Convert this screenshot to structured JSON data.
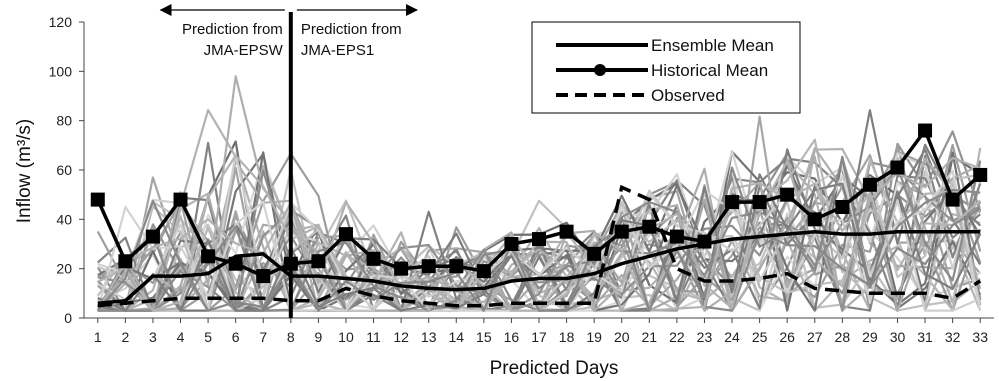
{
  "chart_data": {
    "type": "line",
    "xlabel": "Predicted Days",
    "ylabel": "Inflow (m³/s)",
    "xlim": [
      1,
      33
    ],
    "ylim": [
      0,
      120
    ],
    "yticks": [
      0,
      20,
      40,
      60,
      80,
      100,
      120
    ],
    "x": [
      1,
      2,
      3,
      4,
      5,
      6,
      7,
      8,
      9,
      10,
      11,
      12,
      13,
      14,
      15,
      16,
      17,
      18,
      19,
      20,
      21,
      22,
      23,
      24,
      25,
      26,
      27,
      28,
      29,
      30,
      31,
      32,
      33
    ],
    "grid": false,
    "legend": "top-right",
    "divider_day": 8,
    "annotations": [
      {
        "lines": [
          "Prediction from",
          "JMA-EPSW"
        ],
        "side": "left"
      },
      {
        "lines": [
          "Prediction from",
          "JMA-EPS1"
        ],
        "side": "right"
      }
    ],
    "series": [
      {
        "name": "Ensemble Mean",
        "style": "solid",
        "color": "#000000",
        "values": [
          6,
          7,
          17,
          17,
          18,
          25,
          26,
          17,
          17,
          16,
          15,
          13,
          12,
          11.5,
          12,
          15,
          16,
          16,
          18,
          22,
          25,
          28,
          30,
          32,
          33,
          34,
          35,
          34,
          34,
          35,
          35,
          35,
          35
        ]
      },
      {
        "name": "Historical Mean",
        "style": "solid-marker",
        "color": "#000000",
        "values": [
          48,
          23,
          33,
          48,
          25,
          22,
          17,
          22,
          23,
          34,
          24,
          20,
          21,
          21,
          19,
          30,
          32,
          35,
          26,
          35,
          37,
          33,
          31,
          47,
          47,
          50,
          40,
          45,
          54,
          61,
          76,
          48,
          58
        ]
      },
      {
        "name": "Observed",
        "style": "dashed",
        "color": "#000000",
        "values": [
          5,
          6,
          7,
          8,
          8,
          8,
          8,
          7,
          7,
          12,
          9,
          7,
          6,
          5,
          5,
          6,
          6,
          6,
          6,
          53,
          48,
          20,
          15,
          15,
          16,
          18,
          12,
          11,
          10,
          10,
          10,
          8,
          15
        ]
      }
    ],
    "ensemble_member_count": 40
  }
}
